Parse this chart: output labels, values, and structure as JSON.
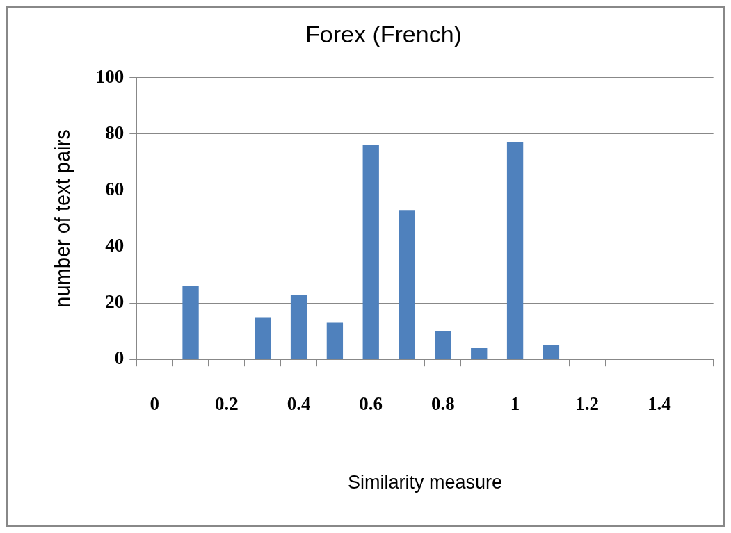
{
  "chart_data": {
    "type": "bar",
    "title": "Forex (French)",
    "xlabel": "Similarity measure",
    "ylabel": "number of text pairs",
    "categories": [
      "0",
      null,
      "0.2",
      null,
      "0.4",
      null,
      "0.6",
      null,
      "0.8",
      null,
      "1",
      null,
      "1.2",
      null,
      "1.4",
      null
    ],
    "values": [
      0,
      26,
      0,
      15,
      23,
      13,
      76,
      53,
      10,
      4,
      77,
      5,
      0,
      0,
      0,
      0
    ],
    "color": "#4f81bd",
    "ylim": [
      0,
      100
    ],
    "yticks": [
      0,
      20,
      40,
      60,
      80,
      100
    ],
    "grid": "y",
    "legend": false
  }
}
